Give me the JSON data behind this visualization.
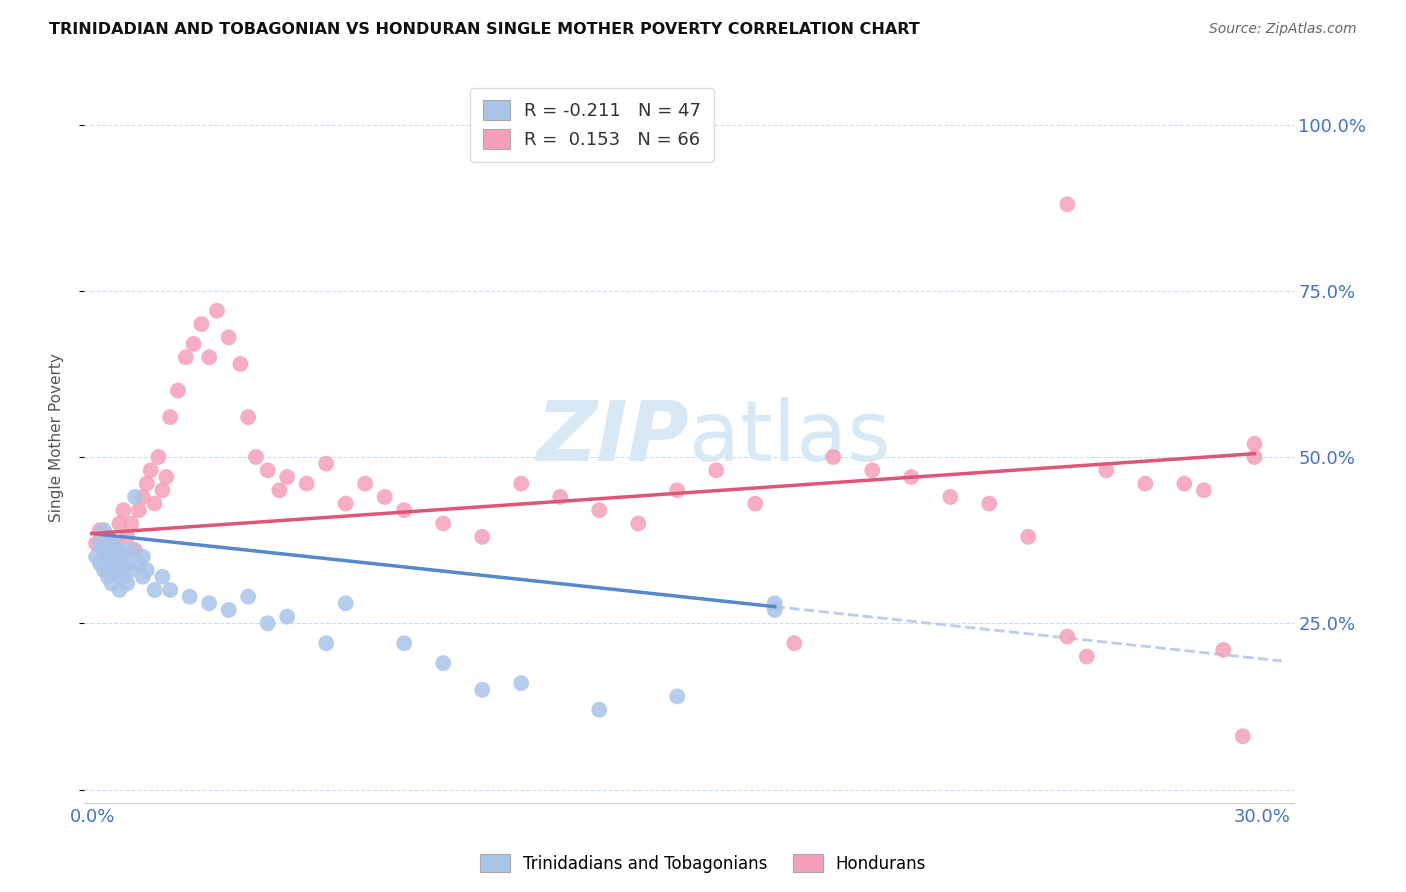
{
  "title": "TRINIDADIAN AND TOBAGONIAN VS HONDURAN SINGLE MOTHER POVERTY CORRELATION CHART",
  "source": "Source: ZipAtlas.com",
  "ylabel": "Single Mother Poverty",
  "xlim": [
    -0.002,
    0.308
  ],
  "ylim": [
    -0.02,
    1.08
  ],
  "ytick_vals": [
    0.0,
    0.25,
    0.5,
    0.75,
    1.0
  ],
  "ytick_labels_right": [
    "",
    "25.0%",
    "50.0%",
    "75.0%",
    "100.0%"
  ],
  "xtick_vals": [
    0.0,
    0.06,
    0.12,
    0.18,
    0.24,
    0.3
  ],
  "xtick_labels": [
    "0.0%",
    "",
    "",
    "",
    "",
    "30.0%"
  ],
  "legend_labels_bottom": [
    "Trinidadians and Tobagonians",
    "Hondurans"
  ],
  "blue_scatter_color": "#aac4e8",
  "pink_scatter_color": "#f5a0b8",
  "blue_line_color": "#5588cc",
  "pink_line_color": "#e05575",
  "dashed_line_color": "#b8ccee",
  "watermark_color": "#d8e8f5",
  "R_blue": -0.211,
  "N_blue": 47,
  "R_pink": 0.153,
  "N_pink": 66,
  "blue_line_x0": 0.0,
  "blue_line_y0": 0.385,
  "blue_line_x1": 0.175,
  "blue_line_y1": 0.275,
  "pink_line_x0": 0.0,
  "pink_line_y0": 0.385,
  "pink_line_x1": 0.298,
  "pink_line_y1": 0.505,
  "blue_scatter_x": [
    0.001,
    0.002,
    0.002,
    0.003,
    0.003,
    0.003,
    0.004,
    0.004,
    0.004,
    0.005,
    0.005,
    0.005,
    0.006,
    0.006,
    0.007,
    0.007,
    0.007,
    0.008,
    0.008,
    0.009,
    0.009,
    0.01,
    0.01,
    0.011,
    0.012,
    0.013,
    0.013,
    0.014,
    0.016,
    0.018,
    0.02,
    0.025,
    0.03,
    0.035,
    0.04,
    0.045,
    0.05,
    0.06,
    0.065,
    0.08,
    0.09,
    0.1,
    0.11,
    0.13,
    0.15,
    0.175,
    0.175
  ],
  "blue_scatter_y": [
    0.35,
    0.34,
    0.37,
    0.33,
    0.36,
    0.39,
    0.32,
    0.35,
    0.38,
    0.31,
    0.34,
    0.37,
    0.33,
    0.36,
    0.3,
    0.33,
    0.36,
    0.32,
    0.35,
    0.31,
    0.34,
    0.33,
    0.36,
    0.44,
    0.34,
    0.32,
    0.35,
    0.33,
    0.3,
    0.32,
    0.3,
    0.29,
    0.28,
    0.27,
    0.29,
    0.25,
    0.26,
    0.22,
    0.28,
    0.22,
    0.19,
    0.15,
    0.16,
    0.12,
    0.14,
    0.28,
    0.27
  ],
  "pink_scatter_x": [
    0.001,
    0.002,
    0.003,
    0.004,
    0.005,
    0.006,
    0.007,
    0.008,
    0.009,
    0.01,
    0.011,
    0.012,
    0.013,
    0.014,
    0.015,
    0.016,
    0.017,
    0.018,
    0.019,
    0.02,
    0.022,
    0.024,
    0.026,
    0.028,
    0.03,
    0.032,
    0.035,
    0.038,
    0.04,
    0.042,
    0.045,
    0.048,
    0.05,
    0.055,
    0.06,
    0.065,
    0.07,
    0.075,
    0.08,
    0.09,
    0.1,
    0.11,
    0.12,
    0.13,
    0.14,
    0.15,
    0.16,
    0.17,
    0.18,
    0.19,
    0.2,
    0.21,
    0.22,
    0.23,
    0.24,
    0.25,
    0.255,
    0.26,
    0.27,
    0.28,
    0.285,
    0.29,
    0.295,
    0.298,
    0.298,
    0.25
  ],
  "pink_scatter_y": [
    0.37,
    0.39,
    0.36,
    0.38,
    0.35,
    0.37,
    0.4,
    0.42,
    0.38,
    0.4,
    0.36,
    0.42,
    0.44,
    0.46,
    0.48,
    0.43,
    0.5,
    0.45,
    0.47,
    0.56,
    0.6,
    0.65,
    0.67,
    0.7,
    0.65,
    0.72,
    0.68,
    0.64,
    0.56,
    0.5,
    0.48,
    0.45,
    0.47,
    0.46,
    0.49,
    0.43,
    0.46,
    0.44,
    0.42,
    0.4,
    0.38,
    0.46,
    0.44,
    0.42,
    0.4,
    0.45,
    0.48,
    0.43,
    0.22,
    0.5,
    0.48,
    0.47,
    0.44,
    0.43,
    0.38,
    0.23,
    0.2,
    0.48,
    0.46,
    0.46,
    0.45,
    0.21,
    0.08,
    0.52,
    0.5,
    0.88
  ]
}
